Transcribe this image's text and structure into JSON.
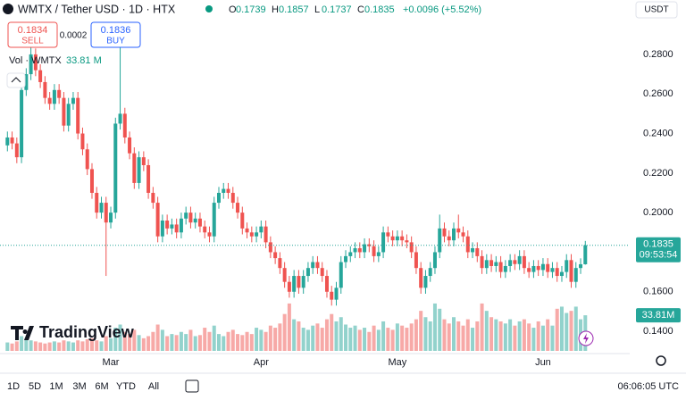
{
  "header": {
    "title": "WMTX / Tether USD · 1D · HTX",
    "ohlc": [
      {
        "label": "O",
        "value": 0.1739
      },
      {
        "label": "H",
        "value": 0.1857
      },
      {
        "label": "L",
        "value": 0.1737
      },
      {
        "label": "C",
        "value": 0.1835
      }
    ],
    "change": "+0.0096 (+5.52%)",
    "sell_price": "0.1834",
    "sell_label": "SELL",
    "spread": "0.0002",
    "buy_price": "0.1836",
    "buy_label": "BUY",
    "volume_title": "Vol · WMTX",
    "volume_value": "33.81 M",
    "currency": "USDT"
  },
  "chart_data": {
    "type": "candlestick",
    "up_color": "#26a69a",
    "down_color": "#ef5350",
    "categories": [
      null,
      null,
      null,
      null,
      null,
      null,
      null,
      null,
      null,
      null,
      null,
      null,
      null,
      null,
      null,
      null,
      null,
      null,
      null,
      null,
      null,
      null,
      "Mar",
      null,
      null,
      null,
      null,
      null,
      null,
      null,
      null,
      null,
      null,
      null,
      null,
      null,
      null,
      null,
      null,
      null,
      null,
      null,
      null,
      null,
      null,
      null,
      null,
      null,
      null,
      null,
      null,
      null,
      null,
      null,
      "Apr",
      null,
      null,
      null,
      null,
      null,
      null,
      null,
      null,
      null,
      null,
      null,
      null,
      null,
      null,
      null,
      null,
      null,
      null,
      null,
      null,
      null,
      null,
      null,
      null,
      null,
      null,
      null,
      null,
      "May",
      null,
      null,
      null,
      null,
      null,
      null,
      null,
      null,
      null,
      null,
      null,
      null,
      null,
      null,
      null,
      null,
      null,
      null,
      null,
      null,
      null,
      null,
      null,
      null,
      null,
      null,
      null,
      null,
      null,
      null,
      "Jun",
      null,
      null,
      null,
      null,
      null,
      null,
      null,
      null,
      null
    ],
    "open": [
      0.234,
      0.238,
      0.235,
      0.228,
      0.262,
      0.27,
      0.28,
      0.272,
      0.266,
      0.258,
      0.255,
      0.262,
      0.258,
      0.244,
      0.255,
      0.258,
      0.24,
      0.232,
      0.222,
      0.21,
      0.2,
      0.205,
      0.195,
      0.2,
      0.245,
      0.25,
      0.238,
      0.23,
      0.215,
      0.228,
      0.224,
      0.21,
      0.205,
      0.188,
      0.196,
      0.192,
      0.194,
      0.19,
      0.197,
      0.2,
      0.195,
      0.197,
      0.193,
      0.19,
      0.188,
      0.205,
      0.21,
      0.212,
      0.21,
      0.205,
      0.2,
      0.192,
      0.19,
      0.188,
      0.19,
      0.193,
      0.185,
      0.18,
      0.177,
      0.172,
      0.165,
      0.16,
      0.168,
      0.162,
      0.168,
      0.172,
      0.175,
      0.172,
      0.168,
      0.16,
      0.156,
      0.162,
      0.175,
      0.178,
      0.18,
      0.182,
      0.18,
      0.184,
      0.183,
      0.178,
      0.18,
      0.19,
      0.188,
      0.186,
      0.188,
      0.186,
      0.185,
      0.18,
      0.172,
      0.162,
      0.168,
      0.172,
      0.18,
      0.192,
      0.188,
      0.186,
      0.192,
      0.19,
      0.188,
      0.18,
      0.182,
      0.178,
      0.172,
      0.176,
      0.173,
      0.175,
      0.17,
      0.173,
      0.176,
      0.174,
      0.178,
      0.172,
      0.17,
      0.173,
      0.171,
      0.174,
      0.17,
      0.172,
      0.168,
      0.17,
      0.176,
      0.165,
      0.172,
      0.1739
    ],
    "high": [
      0.241,
      0.241,
      0.238,
      0.265,
      0.273,
      0.292,
      0.283,
      0.275,
      0.269,
      0.261,
      0.265,
      0.265,
      0.261,
      0.258,
      0.261,
      0.261,
      0.243,
      0.235,
      0.225,
      0.213,
      0.208,
      0.208,
      0.203,
      0.248,
      0.29,
      0.253,
      0.241,
      0.233,
      0.231,
      0.231,
      0.227,
      0.213,
      0.208,
      0.199,
      0.199,
      0.197,
      0.197,
      0.2,
      0.203,
      0.203,
      0.2,
      0.2,
      0.196,
      0.193,
      0.208,
      0.213,
      0.215,
      0.215,
      0.213,
      0.208,
      0.203,
      0.195,
      0.193,
      0.193,
      0.196,
      0.196,
      0.188,
      0.183,
      0.18,
      0.175,
      0.168,
      0.171,
      0.171,
      0.171,
      0.175,
      0.178,
      0.178,
      0.175,
      0.171,
      0.163,
      0.165,
      0.178,
      0.181,
      0.183,
      0.185,
      0.185,
      0.187,
      0.187,
      0.186,
      0.183,
      0.193,
      0.193,
      0.191,
      0.191,
      0.191,
      0.189,
      0.188,
      0.183,
      0.175,
      0.171,
      0.175,
      0.183,
      0.199,
      0.195,
      0.191,
      0.195,
      0.199,
      0.193,
      0.191,
      0.185,
      0.185,
      0.181,
      0.179,
      0.179,
      0.178,
      0.178,
      0.176,
      0.179,
      0.179,
      0.181,
      0.181,
      0.175,
      0.176,
      0.176,
      0.177,
      0.177,
      0.175,
      0.175,
      0.173,
      0.179,
      0.179,
      0.175,
      0.1769,
      0.1857
    ],
    "low": [
      0.231,
      0.232,
      0.225,
      0.225,
      0.259,
      0.267,
      0.269,
      0.263,
      0.255,
      0.252,
      0.252,
      0.255,
      0.241,
      0.241,
      0.252,
      0.237,
      0.229,
      0.219,
      0.207,
      0.197,
      0.197,
      0.168,
      0.192,
      0.197,
      0.242,
      0.235,
      0.227,
      0.212,
      0.212,
      0.221,
      0.207,
      0.202,
      0.185,
      0.185,
      0.189,
      0.189,
      0.187,
      0.187,
      0.194,
      0.192,
      0.192,
      0.19,
      0.187,
      0.185,
      0.185,
      0.202,
      0.207,
      0.207,
      0.202,
      0.197,
      0.189,
      0.187,
      0.185,
      0.185,
      0.187,
      0.182,
      0.177,
      0.174,
      0.169,
      0.162,
      0.157,
      0.157,
      0.159,
      0.159,
      0.165,
      0.169,
      0.169,
      0.165,
      0.157,
      0.153,
      0.153,
      0.159,
      0.172,
      0.175,
      0.177,
      0.177,
      0.177,
      0.18,
      0.175,
      0.175,
      0.177,
      0.185,
      0.183,
      0.183,
      0.183,
      0.182,
      0.177,
      0.169,
      0.159,
      0.159,
      0.165,
      0.169,
      0.177,
      0.185,
      0.183,
      0.183,
      0.187,
      0.185,
      0.177,
      0.177,
      0.175,
      0.169,
      0.169,
      0.17,
      0.17,
      0.167,
      0.167,
      0.17,
      0.171,
      0.171,
      0.169,
      0.167,
      0.167,
      0.168,
      0.168,
      0.167,
      0.167,
      0.165,
      0.165,
      0.167,
      0.162,
      0.162,
      0.169,
      0.1737
    ],
    "close": [
      0.238,
      0.235,
      0.228,
      0.262,
      0.27,
      0.28,
      0.272,
      0.266,
      0.258,
      0.255,
      0.262,
      0.258,
      0.244,
      0.255,
      0.258,
      0.24,
      0.232,
      0.222,
      0.21,
      0.2,
      0.205,
      0.195,
      0.2,
      0.245,
      0.25,
      0.238,
      0.23,
      0.215,
      0.228,
      0.224,
      0.21,
      0.205,
      0.188,
      0.196,
      0.192,
      0.194,
      0.19,
      0.197,
      0.2,
      0.195,
      0.197,
      0.193,
      0.19,
      0.188,
      0.205,
      0.21,
      0.212,
      0.21,
      0.205,
      0.2,
      0.192,
      0.19,
      0.188,
      0.19,
      0.193,
      0.185,
      0.18,
      0.177,
      0.172,
      0.165,
      0.16,
      0.168,
      0.162,
      0.168,
      0.172,
      0.175,
      0.172,
      0.168,
      0.16,
      0.156,
      0.162,
      0.175,
      0.178,
      0.18,
      0.182,
      0.18,
      0.184,
      0.183,
      0.178,
      0.18,
      0.19,
      0.188,
      0.186,
      0.188,
      0.186,
      0.185,
      0.18,
      0.172,
      0.162,
      0.168,
      0.172,
      0.18,
      0.192,
      0.188,
      0.186,
      0.192,
      0.19,
      0.188,
      0.18,
      0.182,
      0.178,
      0.172,
      0.176,
      0.173,
      0.175,
      0.17,
      0.173,
      0.176,
      0.174,
      0.178,
      0.172,
      0.17,
      0.173,
      0.171,
      0.174,
      0.17,
      0.172,
      0.168,
      0.17,
      0.176,
      0.165,
      0.172,
      0.1739,
      0.1835
    ],
    "volume": [
      8,
      7,
      9,
      14,
      12,
      10,
      9,
      8,
      7,
      8,
      9,
      8,
      10,
      9,
      8,
      10,
      9,
      11,
      12,
      10,
      9,
      14,
      12,
      22,
      25,
      18,
      16,
      20,
      15,
      12,
      14,
      18,
      25,
      20,
      14,
      16,
      15,
      18,
      16,
      20,
      14,
      15,
      22,
      18,
      24,
      16,
      14,
      18,
      20,
      16,
      15,
      18,
      16,
      22,
      20,
      18,
      24,
      22,
      26,
      35,
      45,
      30,
      28,
      22,
      20,
      24,
      26,
      22,
      30,
      35,
      28,
      32,
      25,
      22,
      24,
      20,
      22,
      18,
      24,
      20,
      28,
      22,
      20,
      26,
      24,
      22,
      26,
      30,
      38,
      32,
      28,
      45,
      40,
      30,
      26,
      32,
      28,
      24,
      30,
      22,
      28,
      45,
      38,
      32,
      30,
      28,
      26,
      30,
      24,
      28,
      30,
      26,
      22,
      28,
      24,
      30,
      24,
      40,
      42,
      36,
      38,
      42,
      30,
      33.81
    ],
    "volume_lim": [
      0,
      100
    ],
    "ylim": [
      0.1292,
      0.3075
    ],
    "yticks": [
      {
        "value": 0.14,
        "label": "0.1400"
      },
      {
        "value": 0.16,
        "label": "0.1600"
      },
      {
        "value": 0.18,
        "label": "0.1800"
      },
      {
        "value": 0.2,
        "label": "0.2000"
      },
      {
        "value": 0.22,
        "label": "0.2200"
      },
      {
        "value": 0.24,
        "label": "0.2400"
      },
      {
        "value": 0.26,
        "label": "0.2600"
      },
      {
        "value": 0.28,
        "label": "0.2800"
      }
    ],
    "countdown": "09:53:54",
    "volume_axis_label": "33.81M"
  },
  "footer": {
    "ranges": [
      "1D",
      "5D",
      "1M",
      "3M",
      "6M",
      "YTD",
      "All"
    ],
    "time": "06:06:05 UTC"
  },
  "logo": "TradingView"
}
